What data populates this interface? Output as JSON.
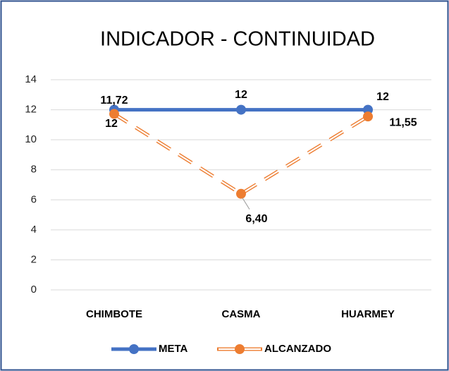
{
  "chart_data": {
    "type": "line",
    "title": "INDICADOR - CONTINUIDAD",
    "categories": [
      "CHIMBOTE",
      "CASMA",
      "HUARMEY"
    ],
    "series": [
      {
        "name": "META",
        "color": "#4472c4",
        "values": [
          12,
          12,
          12
        ]
      },
      {
        "name": "ALCANZADO",
        "color": "#ed7d31",
        "values": [
          11.72,
          6.4,
          11.55
        ],
        "value_labels": [
          "11,72",
          "6,40",
          "11,55"
        ]
      }
    ],
    "ylim": [
      0,
      14
    ],
    "yticks": [
      0,
      2,
      4,
      6,
      8,
      10,
      12,
      14
    ],
    "grid": true,
    "legend": "bottom"
  }
}
